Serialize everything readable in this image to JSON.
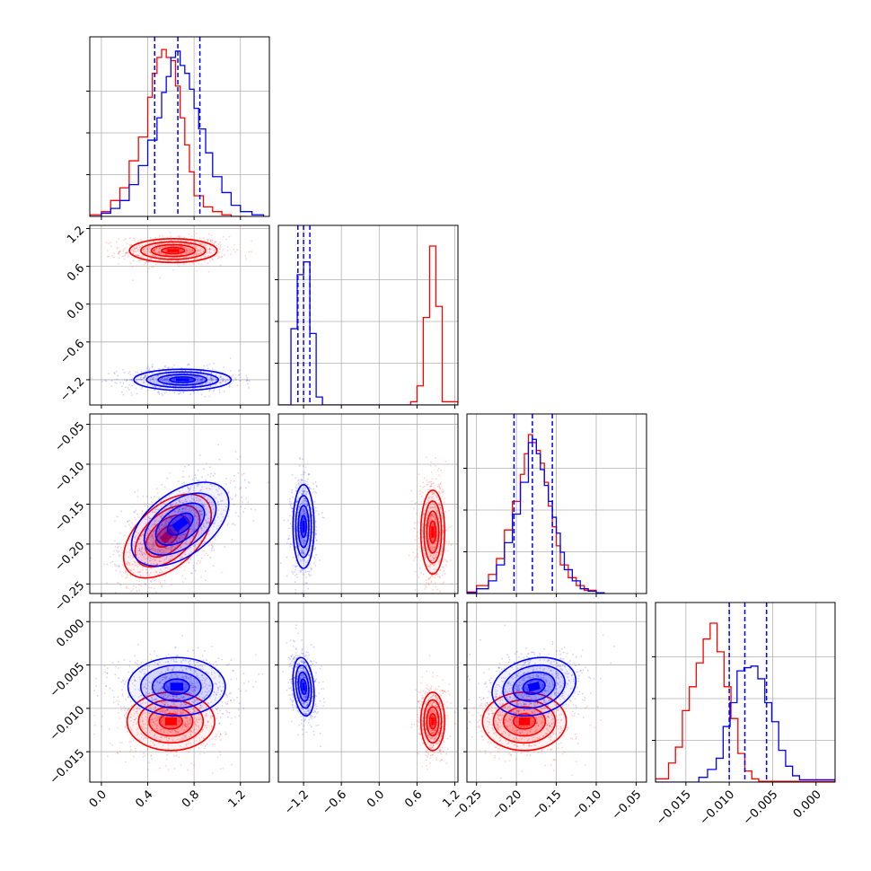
{
  "chart_data": {
    "type": "corner",
    "series_colors": {
      "red": "#ff0000",
      "blue": "#0000ff"
    },
    "grid": true,
    "parameters": [
      {
        "range": [
          -0.1,
          1.45
        ],
        "ticks": [
          0.0,
          0.4,
          0.8,
          1.2
        ],
        "tick_labels": [
          "0.0",
          "0.4",
          "0.8",
          "1.2"
        ]
      },
      {
        "range": [
          -1.6,
          1.25
        ],
        "ticks": [
          -1.2,
          -0.6,
          0.0,
          0.6,
          1.2
        ],
        "tick_labels": [
          "−1.2",
          "−0.6",
          "0.0",
          "0.6",
          "1.2"
        ]
      },
      {
        "range": [
          -0.262,
          -0.037
        ],
        "ticks": [
          -0.25,
          -0.2,
          -0.15,
          -0.1,
          -0.05
        ],
        "tick_labels": [
          "−0.25",
          "−0.20",
          "−0.15",
          "−0.10",
          "−0.05"
        ]
      },
      {
        "range": [
          -0.0185,
          0.0022
        ],
        "ticks": [
          -0.015,
          -0.01,
          -0.005,
          0.0
        ],
        "tick_labels": [
          "−0.015",
          "−0.010",
          "−0.005",
          "0.000"
        ]
      }
    ],
    "hist_ylim": [
      0,
      1.13
    ],
    "histograms": [
      {
        "param": 0,
        "quantiles": [
          0.46,
          0.66,
          0.85
        ],
        "red": {
          "edges": [
            -0.1,
            0.0,
            0.08,
            0.16,
            0.24,
            0.32,
            0.4,
            0.44,
            0.48,
            0.52,
            0.56,
            0.6,
            0.64,
            0.68,
            0.72,
            0.76,
            0.8,
            0.88,
            0.96,
            1.04,
            1.12,
            1.25
          ],
          "counts": [
            0.01,
            0.03,
            0.1,
            0.18,
            0.35,
            0.5,
            0.75,
            0.9,
            1.0,
            1.05,
            1.0,
            0.98,
            0.82,
            0.62,
            0.45,
            0.28,
            0.13,
            0.06,
            0.03,
            0.01,
            0.0
          ]
        },
        "blue": {
          "edges": [
            -0.1,
            0.0,
            0.08,
            0.16,
            0.24,
            0.32,
            0.4,
            0.48,
            0.52,
            0.56,
            0.6,
            0.64,
            0.68,
            0.72,
            0.76,
            0.8,
            0.84,
            0.9,
            0.96,
            1.04,
            1.12,
            1.2,
            1.3,
            1.4
          ],
          "counts": [
            0.0,
            0.02,
            0.05,
            0.1,
            0.2,
            0.32,
            0.48,
            0.62,
            0.78,
            0.88,
            1.0,
            1.04,
            0.95,
            0.9,
            0.8,
            0.68,
            0.55,
            0.4,
            0.25,
            0.15,
            0.07,
            0.03,
            0.01
          ]
        }
      },
      {
        "param": 1,
        "quantiles": [
          -1.29,
          -1.2,
          -1.1
        ],
        "red": {
          "edges": [
            -1.6,
            0.5,
            0.6,
            0.7,
            0.8,
            0.9,
            1.0,
            1.25
          ],
          "counts": [
            0.0,
            0.02,
            0.12,
            0.55,
            1.0,
            0.62,
            0.02
          ]
        },
        "blue": {
          "edges": [
            -1.6,
            -1.4,
            -1.3,
            -1.2,
            -1.1,
            -1.0,
            -0.9,
            1.25
          ],
          "counts": [
            0.0,
            0.48,
            0.82,
            0.9,
            0.45,
            0.05,
            0.0
          ]
        }
      },
      {
        "param": 2,
        "quantiles": [
          -0.203,
          -0.18,
          -0.155
        ],
        "red": {
          "edges": [
            -0.262,
            -0.25,
            -0.235,
            -0.225,
            -0.215,
            -0.205,
            -0.195,
            -0.19,
            -0.185,
            -0.18,
            -0.175,
            -0.17,
            -0.165,
            -0.16,
            -0.155,
            -0.15,
            -0.145,
            -0.135,
            -0.125,
            -0.115,
            -0.1,
            -0.09
          ],
          "counts": [
            0.01,
            0.05,
            0.12,
            0.22,
            0.4,
            0.58,
            0.75,
            0.88,
            1.0,
            0.95,
            0.9,
            0.82,
            0.7,
            0.55,
            0.42,
            0.3,
            0.18,
            0.1,
            0.05,
            0.02,
            0.005
          ]
        },
        "blue": {
          "edges": [
            -0.262,
            -0.25,
            -0.235,
            -0.225,
            -0.215,
            -0.205,
            -0.195,
            -0.185,
            -0.18,
            -0.175,
            -0.17,
            -0.165,
            -0.16,
            -0.155,
            -0.15,
            -0.145,
            -0.14,
            -0.13,
            -0.12,
            -0.11,
            -0.1,
            -0.09
          ],
          "counts": [
            0.005,
            0.03,
            0.08,
            0.18,
            0.32,
            0.5,
            0.7,
            0.95,
            0.97,
            0.88,
            0.78,
            0.68,
            0.58,
            0.48,
            0.38,
            0.26,
            0.15,
            0.08,
            0.03,
            0.015,
            0.005
          ]
        }
      },
      {
        "param": 3,
        "quantiles": [
          -0.01,
          -0.0082,
          -0.0057
        ],
        "red": {
          "edges": [
            -0.0185,
            -0.017,
            -0.0162,
            -0.0154,
            -0.0146,
            -0.0138,
            -0.013,
            -0.0122,
            -0.0114,
            -0.0106,
            -0.0098,
            -0.009,
            -0.0082,
            -0.0074,
            -0.0066,
            0.0022
          ],
          "counts": [
            0.02,
            0.12,
            0.22,
            0.45,
            0.6,
            0.75,
            0.9,
            1.0,
            0.82,
            0.6,
            0.4,
            0.18,
            0.07,
            0.02,
            0.005
          ]
        },
        "blue": {
          "edges": [
            -0.0185,
            -0.0135,
            -0.0125,
            -0.0115,
            -0.0107,
            -0.0099,
            -0.0091,
            -0.0083,
            -0.0075,
            -0.0067,
            -0.0059,
            -0.0051,
            -0.0043,
            -0.0035,
            -0.0027,
            -0.0019,
            0.0022
          ],
          "counts": [
            0.0,
            0.03,
            0.08,
            0.15,
            0.35,
            0.5,
            0.7,
            0.72,
            0.73,
            0.65,
            0.5,
            0.38,
            0.2,
            0.1,
            0.04,
            0.015
          ]
        }
      }
    ],
    "pairs": [
      {
        "x_param": 0,
        "y_param": 1,
        "red": {
          "mean": [
            0.62,
            0.85
          ],
          "sd": [
            0.18,
            0.09
          ],
          "rho": 0.0
        },
        "blue": {
          "mean": [
            0.7,
            -1.2
          ],
          "sd": [
            0.2,
            0.08
          ],
          "rho": 0.0
        }
      },
      {
        "x_param": 0,
        "y_param": 2,
        "red": {
          "mean": [
            0.57,
            -0.19
          ],
          "sd": [
            0.18,
            0.025
          ],
          "rho": 0.5
        },
        "blue": {
          "mean": [
            0.68,
            -0.175
          ],
          "sd": [
            0.2,
            0.025
          ],
          "rho": 0.5
        }
      },
      {
        "x_param": 1,
        "y_param": 2,
        "red": {
          "mean": [
            0.85,
            -0.185
          ],
          "sd": [
            0.09,
            0.025
          ],
          "rho": 0.0
        },
        "blue": {
          "mean": [
            -1.2,
            -0.178
          ],
          "sd": [
            0.08,
            0.025
          ],
          "rho": 0.0
        }
      },
      {
        "x_param": 0,
        "y_param": 3,
        "red": {
          "mean": [
            0.6,
            -0.0115
          ],
          "sd": [
            0.18,
            0.0016
          ],
          "rho": 0.0
        },
        "blue": {
          "mean": [
            0.65,
            -0.0075
          ],
          "sd": [
            0.2,
            0.0016
          ],
          "rho": 0.0
        }
      },
      {
        "x_param": 1,
        "y_param": 3,
        "red": {
          "mean": [
            0.85,
            -0.0115
          ],
          "sd": [
            0.09,
            0.0016
          ],
          "rho": 0.0
        },
        "blue": {
          "mean": [
            -1.2,
            -0.0075
          ],
          "sd": [
            0.08,
            0.0016
          ],
          "rho": -0.25
        }
      },
      {
        "x_param": 2,
        "y_param": 3,
        "red": {
          "mean": [
            -0.19,
            -0.0115
          ],
          "sd": [
            0.025,
            0.0016
          ],
          "rho": 0.0
        },
        "blue": {
          "mean": [
            -0.178,
            -0.0075
          ],
          "sd": [
            0.025,
            0.0016
          ],
          "rho": 0.2
        }
      }
    ]
  }
}
